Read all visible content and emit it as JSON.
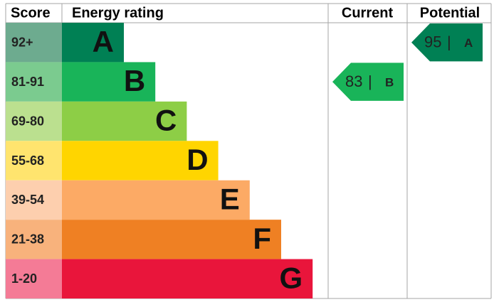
{
  "headers": {
    "score": "Score",
    "rating": "Energy rating",
    "current": "Current",
    "potential": "Potential"
  },
  "bands": [
    {
      "score": "92+",
      "letter": "A",
      "color": "#008054",
      "score_color": "#6dab8f"
    },
    {
      "score": "81-91",
      "letter": "B",
      "color": "#19b459",
      "score_color": "#7bcb8f"
    },
    {
      "score": "69-80",
      "letter": "C",
      "color": "#8dce46",
      "score_color": "#bbe08f"
    },
    {
      "score": "55-68",
      "letter": "D",
      "color": "#ffd500",
      "score_color": "#ffe46e"
    },
    {
      "score": "39-54",
      "letter": "E",
      "color": "#fcaa65",
      "score_color": "#fdcfae"
    },
    {
      "score": "21-38",
      "letter": "F",
      "color": "#ef8023",
      "score_color": "#f8b27c"
    },
    {
      "score": "1-20",
      "letter": "G",
      "color": "#e9153b",
      "score_color": "#f47b96"
    }
  ],
  "separator": "|",
  "current": {
    "value": 83,
    "letter": "B",
    "color": "#19b459"
  },
  "potential": {
    "value": 95,
    "letter": "A",
    "color": "#008054"
  }
}
